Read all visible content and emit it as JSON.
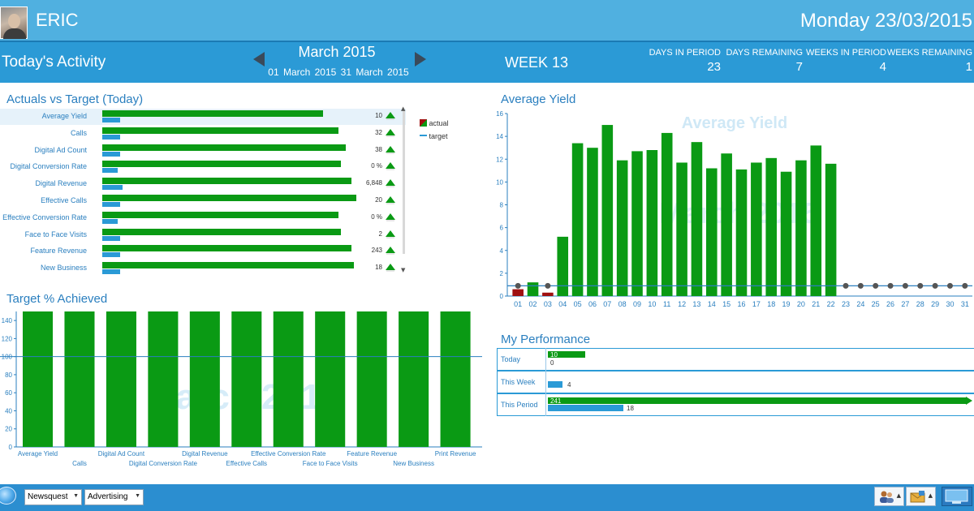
{
  "header": {
    "user_name": "ERIC",
    "date": "Monday 23/03/2015",
    "activity_title": "Today's Activity",
    "period_month": "March 2015",
    "period_range": "01 March 2015   31 March 2015",
    "week_label": "WEEK  13",
    "stats": [
      {
        "label": "DAYS IN PERIOD",
        "value": "23"
      },
      {
        "label": "DAYS REMAINING",
        "value": "7"
      },
      {
        "label": "WEEKS IN PERIOD",
        "value": "4"
      },
      {
        "label": "WEEKS REMAINING",
        "value": "1"
      }
    ]
  },
  "actuals_vs_target": {
    "title": "Actuals vs Target (Today)",
    "legend": {
      "actual": "actual",
      "target": "target"
    },
    "colors": {
      "actual": "#0a9a14",
      "target": "#2a9ad6",
      "arrow": "#0a9a14"
    },
    "rows": [
      {
        "label": "Average Yield",
        "value": "10",
        "actual": 0.86,
        "target": 0.07,
        "selected": true
      },
      {
        "label": "Calls",
        "value": "32",
        "actual": 0.92,
        "target": 0.07
      },
      {
        "label": "Digital Ad Count",
        "value": "38",
        "actual": 0.95,
        "target": 0.07
      },
      {
        "label": "Digital Conversion Rate",
        "value": "0 %",
        "actual": 0.93,
        "target": 0.06
      },
      {
        "label": "Digital Revenue",
        "value": "6,848",
        "actual": 0.97,
        "target": 0.08
      },
      {
        "label": "Effective Calls",
        "value": "20",
        "actual": 0.99,
        "target": 0.07
      },
      {
        "label": "Effective Conversion Rate",
        "value": "0 %",
        "actual": 0.92,
        "target": 0.06
      },
      {
        "label": "Face to Face Visits",
        "value": "2",
        "actual": 0.93,
        "target": 0.07
      },
      {
        "label": "Feature Revenue",
        "value": "243",
        "actual": 0.97,
        "target": 0.07
      },
      {
        "label": "New Business",
        "value": "18",
        "actual": 0.98,
        "target": 0.07
      }
    ]
  },
  "target_achieved": {
    "title": "Target % Achieved",
    "watermark": "March 2015",
    "chart_data": {
      "type": "bar",
      "categories": [
        "Average Yield",
        "Calls",
        "Digital Ad Count",
        "Digital Conversion Rate",
        "Digital Revenue",
        "Effective Calls",
        "Effective Conversion Rate",
        "Face to Face Visits",
        "Feature Revenue",
        "New Business",
        "Print Revenue"
      ],
      "values": [
        150,
        150,
        150,
        150,
        150,
        150,
        150,
        150,
        150,
        150,
        150
      ],
      "target_line": 100,
      "ylim": [
        0,
        150
      ],
      "yticks": [
        0,
        20,
        40,
        60,
        80,
        100,
        120,
        140
      ],
      "colors": {
        "bar": "#0a9a14",
        "line": "#2a7fbf"
      }
    }
  },
  "average_yield": {
    "title": "Average Yield",
    "watermark_title": "Average Yield",
    "watermark_period": "March 2015",
    "chart_data": {
      "type": "bar",
      "categories": [
        "01",
        "02",
        "03",
        "04",
        "05",
        "06",
        "07",
        "08",
        "09",
        "10",
        "11",
        "12",
        "13",
        "14",
        "15",
        "16",
        "17",
        "18",
        "19",
        "20",
        "21",
        "22",
        "23",
        "24",
        "25",
        "26",
        "27",
        "28",
        "29",
        "30",
        "31"
      ],
      "values": [
        0.6,
        1.2,
        0.3,
        5.2,
        13.4,
        13.0,
        15.0,
        11.9,
        12.7,
        12.8,
        14.3,
        11.7,
        13.5,
        11.2,
        12.5,
        11.1,
        11.7,
        12.1,
        10.9,
        11.9,
        13.2,
        11.6,
        0,
        0,
        0,
        0,
        0,
        0,
        0,
        0,
        0
      ],
      "below_target": [
        true,
        false,
        true,
        false,
        false,
        false,
        false,
        false,
        false,
        false,
        false,
        false,
        false,
        false,
        false,
        false,
        false,
        false,
        false,
        false,
        false,
        false,
        false,
        false,
        false,
        false,
        false,
        false,
        false,
        false,
        false
      ],
      "target": 0.9,
      "ylim": [
        0,
        16
      ],
      "yticks": [
        0,
        2,
        4,
        6,
        8,
        10,
        12,
        14,
        16
      ],
      "colors": {
        "above": "#0a9a14",
        "below": "#a01010",
        "target": "#2a7fbf",
        "marker": "#555555"
      }
    }
  },
  "performance": {
    "title": "My Performance",
    "rows": [
      {
        "label": "Today",
        "actual_label": "10",
        "target_label": "0",
        "actual": 0.09,
        "target": 0.0
      },
      {
        "label": "This Week",
        "actual_label": "",
        "target_label": "4",
        "actual": 0.0,
        "target": 0.035
      },
      {
        "label": "This Period",
        "actual_label": "241",
        "target_label": "18",
        "actual": 1.0,
        "target": 0.18
      }
    ]
  },
  "footer": {
    "publication": "Newsquest",
    "department": "Advertising"
  }
}
